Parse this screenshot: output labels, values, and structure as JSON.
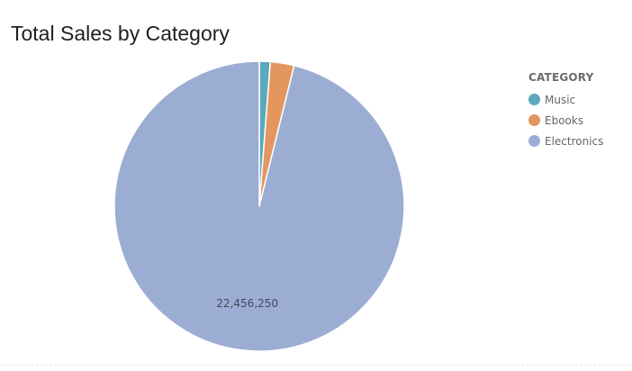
{
  "chart_data": {
    "type": "pie",
    "title": "Total Sales by Category",
    "legend_title": "CATEGORY",
    "legend_position": "right",
    "slices": [
      {
        "label": "Music",
        "value": 285000,
        "color": "#5aa9bf"
      },
      {
        "label": "Ebooks",
        "value": 620000,
        "color": "#e3975f"
      },
      {
        "label": "Electronics",
        "value": 22456250,
        "color": "#9cadd3",
        "data_label": "22,456,250"
      }
    ]
  }
}
